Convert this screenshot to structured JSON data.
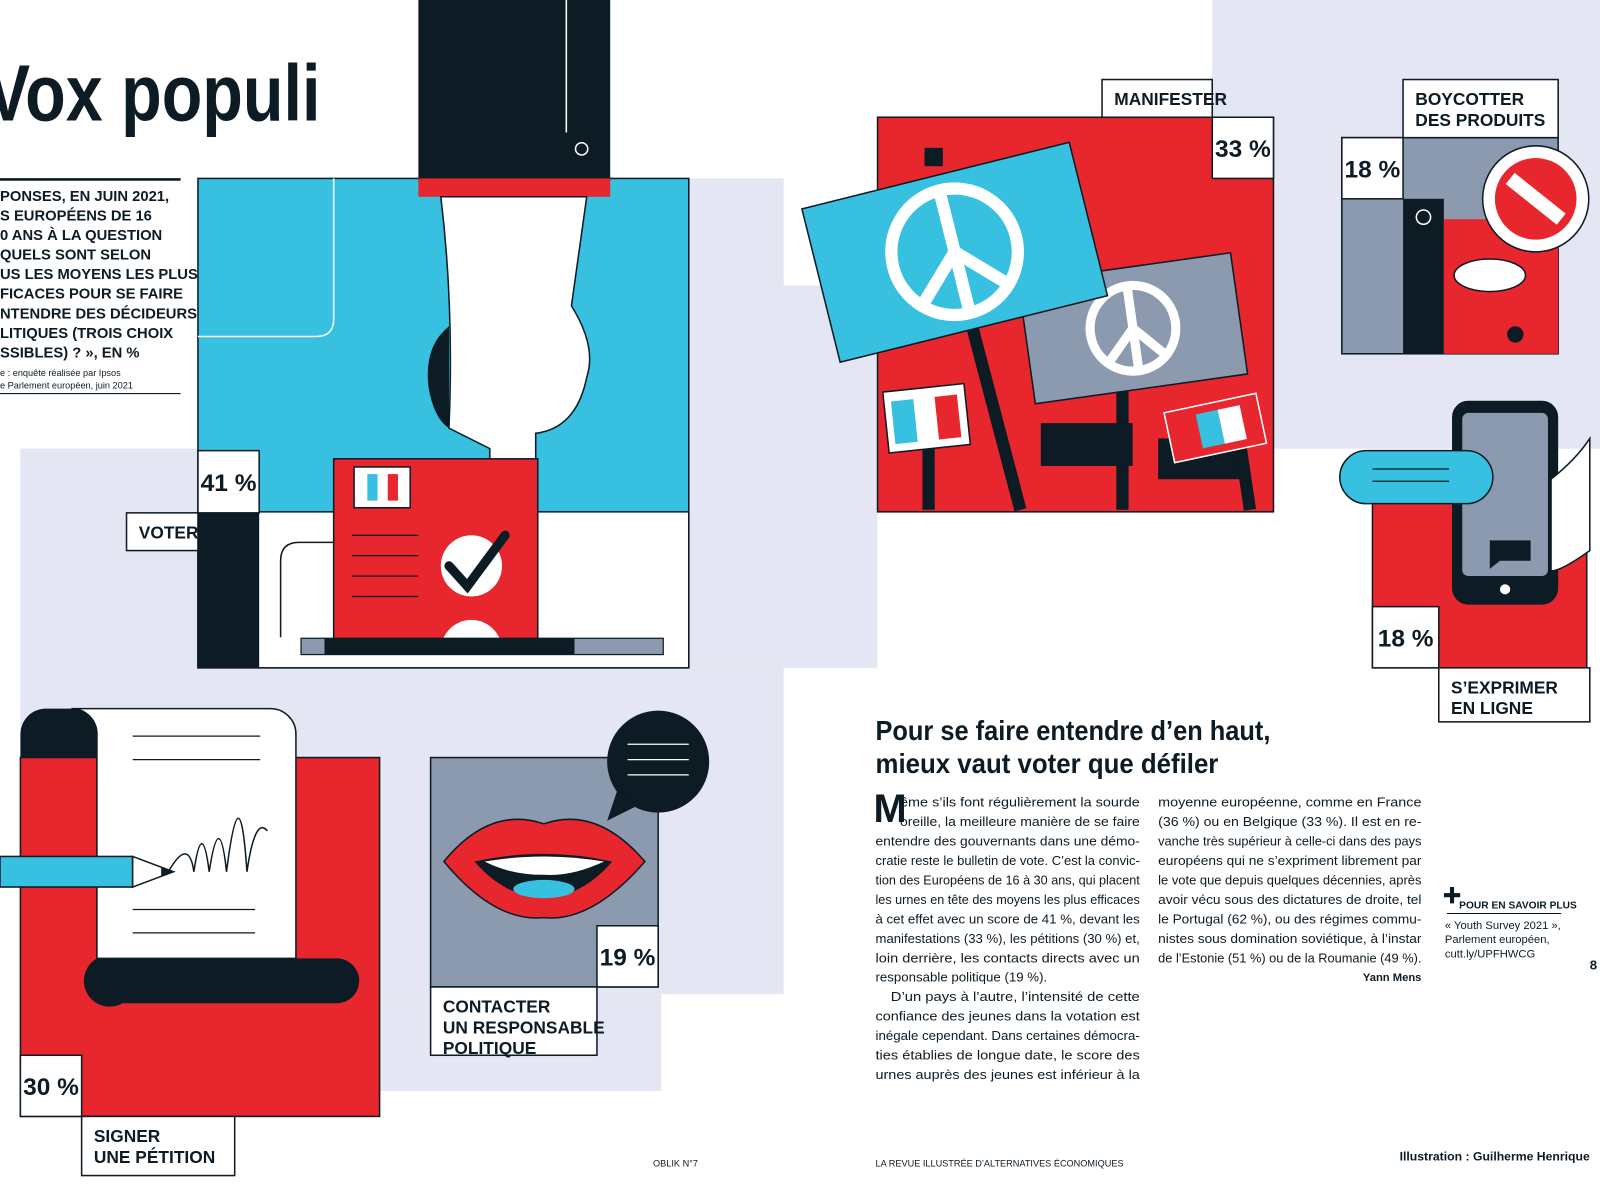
{
  "title": "Vox populi",
  "intro": {
    "lines": [
      "PONSES, EN JUIN 2021,",
      "S EUROPÉENS DE 16",
      "0 ANS À LA QUESTION",
      "QUELS SONT SELON",
      "US LES MOYENS LES PLUS",
      "FICACES POUR SE FAIRE",
      "NTENDRE DES DÉCIDEURS",
      "LITIQUES (TROIS CHOIX",
      "SSIBLES) ? », EN %"
    ],
    "source": [
      "e : enquête réalisée par Ipsos",
      "e Parlement européen, juin 2021"
    ]
  },
  "items": [
    {
      "label": [
        "VOTER"
      ],
      "share": "41 %"
    },
    {
      "label": [
        "MANIFESTER"
      ],
      "share": "33 %"
    },
    {
      "label": [
        "BOYCOTTER",
        "DES PRODUITS"
      ],
      "share": "18 %"
    },
    {
      "label": [
        "S’EXPRIMER",
        "EN LIGNE"
      ],
      "share": "18 %"
    },
    {
      "label": [
        "SIGNER",
        "UNE PÉTITION"
      ],
      "share": "30 %"
    },
    {
      "label": [
        "CONTACTER",
        "UN RESPONSABLE",
        "POLITIQUE"
      ],
      "share": "19 %"
    }
  ],
  "article": {
    "heading": [
      "Pour se faire entendre d’en haut,",
      "mieux vaut voter que défiler"
    ],
    "drop_cap": "M",
    "column1": [
      "ême s’ils font régulièrement la sourde",
      "oreille, la meilleure manière de se faire",
      "entendre des gouvernants dans une démo-",
      "cratie reste le bulletin de vote. C’est la convic-",
      "tion des Européens de 16 à 30 ans, qui placent",
      "les urnes en tête des moyens les plus efficaces",
      "à cet effet avec un score de 41 %, devant les",
      "manifestations (33 %), les pétitions (30 %) et,",
      "loin derrière, les contacts directs avec un",
      "responsable politique (19 %).",
      "D’un pays à l’autre, l’intensité de cette",
      "confiance des jeunes dans la votation est",
      "inégale cependant. Dans certaines démocra-",
      "ties établies de longue date, le score des",
      "urnes auprès des jeunes est inférieur à la"
    ],
    "column2": [
      "moyenne européenne, comme en France",
      "(36 %) ou en Belgique (33 %). Il est en re-",
      "vanche très supérieur à celle-ci dans des pays",
      "européens qui ne s’expriment librement par",
      "le vote que depuis quelques décennies, après",
      "avoir vécu sous des dictatures de droite, tel",
      "le Portugal (62 %), ou des régimes commu-",
      "nistes sous domination soviétique, à l’instar",
      "de l’Estonie (51 %) ou de la Roumanie (49 %)."
    ],
    "author": "Yann Mens"
  },
  "sidebar": {
    "heading": "POUR EN SAVOIR PLUS",
    "lines": [
      "« Youth Survey 2021 »,",
      "Parlement européen,",
      "cutt.ly/UPFHWCG"
    ]
  },
  "page_number": "8",
  "footer": {
    "left": "OBLIK N°7",
    "center": "LA REVUE ILLUSTRÉE D’ALTERNATIVES ÉCONOMIQUES",
    "credit": "Illustration : Guilherme Henrique"
  }
}
